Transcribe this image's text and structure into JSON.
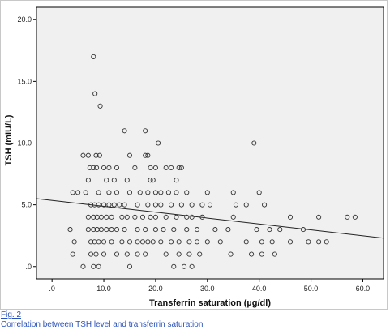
{
  "figure": {
    "link_label": "Fig. 2",
    "caption": "Correlation between TSH level and transferrin saturation"
  },
  "colors": {
    "plot_background": "#f0f0f0",
    "marker_stroke": "#333333",
    "fit_line": "#222222",
    "link": "#2a52be"
  },
  "chart_data": {
    "type": "scatter",
    "title": "",
    "xlabel": "Transferrin saturation (µg/dl)",
    "ylabel": "TSH (mIU/L)",
    "xlim": [
      -3,
      64
    ],
    "ylim": [
      -1,
      21
    ],
    "x_ticks": [
      0,
      10,
      20,
      30,
      40,
      50,
      60
    ],
    "x_tick_labels": [
      ".0",
      "10.0",
      "20.0",
      "30.0",
      "40.0",
      "50.0",
      "60.0"
    ],
    "y_ticks": [
      0,
      5,
      10,
      15,
      20
    ],
    "y_tick_labels": [
      ".0",
      "5.0",
      "10.0",
      "15.0",
      "20.0"
    ],
    "grid": false,
    "legend": "none",
    "fit_line": {
      "x": [
        -3,
        64
      ],
      "y": [
        5.5,
        2.3
      ]
    },
    "points": [
      [
        8.0,
        17.0
      ],
      [
        8.3,
        14.0
      ],
      [
        9.3,
        13.0
      ],
      [
        14.0,
        11.0
      ],
      [
        18.0,
        11.0
      ],
      [
        20.5,
        10.0
      ],
      [
        39.0,
        10.0
      ],
      [
        6.0,
        9.0
      ],
      [
        7.0,
        9.0
      ],
      [
        8.5,
        9.0
      ],
      [
        9.2,
        9.0
      ],
      [
        15.0,
        9.0
      ],
      [
        18.0,
        9.0
      ],
      [
        18.5,
        9.0
      ],
      [
        7.3,
        8.0
      ],
      [
        8.0,
        8.0
      ],
      [
        8.6,
        8.0
      ],
      [
        10.0,
        8.0
      ],
      [
        11.0,
        8.0
      ],
      [
        12.5,
        8.0
      ],
      [
        16.0,
        8.0
      ],
      [
        19.0,
        8.0
      ],
      [
        20.0,
        8.0
      ],
      [
        22.0,
        8.0
      ],
      [
        23.0,
        8.0
      ],
      [
        24.5,
        8.0
      ],
      [
        25.0,
        8.0
      ],
      [
        7.0,
        7.0
      ],
      [
        10.5,
        7.0
      ],
      [
        12.0,
        7.0
      ],
      [
        14.5,
        7.0
      ],
      [
        19.0,
        7.0
      ],
      [
        19.5,
        7.0
      ],
      [
        24.0,
        7.0
      ],
      [
        4.0,
        6.0
      ],
      [
        5.0,
        6.0
      ],
      [
        6.5,
        6.0
      ],
      [
        9.0,
        6.0
      ],
      [
        11.0,
        6.0
      ],
      [
        12.5,
        6.0
      ],
      [
        15.0,
        6.0
      ],
      [
        17.0,
        6.0
      ],
      [
        18.5,
        6.0
      ],
      [
        20.0,
        6.0
      ],
      [
        21.0,
        6.0
      ],
      [
        22.5,
        6.0
      ],
      [
        24.0,
        6.0
      ],
      [
        26.0,
        6.0
      ],
      [
        30.0,
        6.0
      ],
      [
        35.0,
        6.0
      ],
      [
        40.0,
        6.0
      ],
      [
        7.5,
        5.0
      ],
      [
        8.2,
        5.0
      ],
      [
        9.0,
        5.0
      ],
      [
        10.0,
        5.0
      ],
      [
        11.0,
        5.0
      ],
      [
        12.0,
        5.0
      ],
      [
        13.0,
        5.0
      ],
      [
        14.0,
        5.0
      ],
      [
        16.5,
        5.0
      ],
      [
        18.5,
        5.0
      ],
      [
        20.0,
        5.0
      ],
      [
        21.0,
        5.0
      ],
      [
        23.0,
        5.0
      ],
      [
        25.0,
        5.0
      ],
      [
        27.0,
        5.0
      ],
      [
        29.0,
        5.0
      ],
      [
        30.5,
        5.0
      ],
      [
        35.5,
        5.0
      ],
      [
        37.5,
        5.0
      ],
      [
        41.0,
        5.0
      ],
      [
        7.0,
        4.0
      ],
      [
        8.0,
        4.0
      ],
      [
        8.7,
        4.0
      ],
      [
        9.5,
        4.0
      ],
      [
        10.5,
        4.0
      ],
      [
        11.5,
        4.0
      ],
      [
        13.5,
        4.0
      ],
      [
        14.5,
        4.0
      ],
      [
        16.0,
        4.0
      ],
      [
        17.5,
        4.0
      ],
      [
        19.0,
        4.0
      ],
      [
        20.0,
        4.0
      ],
      [
        22.0,
        4.0
      ],
      [
        24.0,
        4.0
      ],
      [
        26.0,
        4.0
      ],
      [
        27.0,
        4.0
      ],
      [
        29.0,
        4.0
      ],
      [
        35.0,
        4.0
      ],
      [
        46.0,
        4.0
      ],
      [
        51.5,
        4.0
      ],
      [
        57.0,
        4.0
      ],
      [
        58.5,
        4.0
      ],
      [
        3.5,
        3.0
      ],
      [
        7.0,
        3.0
      ],
      [
        8.0,
        3.0
      ],
      [
        8.7,
        3.0
      ],
      [
        9.5,
        3.0
      ],
      [
        10.5,
        3.0
      ],
      [
        11.5,
        3.0
      ],
      [
        12.5,
        3.0
      ],
      [
        14.0,
        3.0
      ],
      [
        16.5,
        3.0
      ],
      [
        18.0,
        3.0
      ],
      [
        20.0,
        3.0
      ],
      [
        21.5,
        3.0
      ],
      [
        23.5,
        3.0
      ],
      [
        26.0,
        3.0
      ],
      [
        28.0,
        3.0
      ],
      [
        31.5,
        3.0
      ],
      [
        34.0,
        3.0
      ],
      [
        39.5,
        3.0
      ],
      [
        42.0,
        3.0
      ],
      [
        44.0,
        3.0
      ],
      [
        48.5,
        3.0
      ],
      [
        4.3,
        2.0
      ],
      [
        7.5,
        2.0
      ],
      [
        8.2,
        2.0
      ],
      [
        9.0,
        2.0
      ],
      [
        10.0,
        2.0
      ],
      [
        11.5,
        2.0
      ],
      [
        13.5,
        2.0
      ],
      [
        15.0,
        2.0
      ],
      [
        16.5,
        2.0
      ],
      [
        17.5,
        2.0
      ],
      [
        18.5,
        2.0
      ],
      [
        19.5,
        2.0
      ],
      [
        21.0,
        2.0
      ],
      [
        23.0,
        2.0
      ],
      [
        24.5,
        2.0
      ],
      [
        26.5,
        2.0
      ],
      [
        28.0,
        2.0
      ],
      [
        30.0,
        2.0
      ],
      [
        32.5,
        2.0
      ],
      [
        37.5,
        2.0
      ],
      [
        40.5,
        2.0
      ],
      [
        42.5,
        2.0
      ],
      [
        46.0,
        2.0
      ],
      [
        49.5,
        2.0
      ],
      [
        51.5,
        2.0
      ],
      [
        53.0,
        2.0
      ],
      [
        4.0,
        1.0
      ],
      [
        7.5,
        1.0
      ],
      [
        8.5,
        1.0
      ],
      [
        10.0,
        1.0
      ],
      [
        12.5,
        1.0
      ],
      [
        14.5,
        1.0
      ],
      [
        16.5,
        1.0
      ],
      [
        18.0,
        1.0
      ],
      [
        22.0,
        1.0
      ],
      [
        24.5,
        1.0
      ],
      [
        26.5,
        1.0
      ],
      [
        28.5,
        1.0
      ],
      [
        34.5,
        1.0
      ],
      [
        38.5,
        1.0
      ],
      [
        40.5,
        1.0
      ],
      [
        43.0,
        1.0
      ],
      [
        6.0,
        0.0
      ],
      [
        8.0,
        0.0
      ],
      [
        9.0,
        0.0
      ],
      [
        15.0,
        0.0
      ],
      [
        23.5,
        0.0
      ],
      [
        25.5,
        0.0
      ],
      [
        27.0,
        0.0
      ]
    ]
  }
}
